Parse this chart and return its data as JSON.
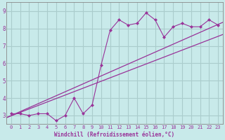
{
  "title": "",
  "xlabel": "Windchill (Refroidissement éolien,°C)",
  "ylabel": "",
  "background_color": "#c8eaea",
  "grid_color": "#aacccc",
  "line_color": "#993399",
  "spine_color": "#888888",
  "xlim": [
    -0.5,
    23.5
  ],
  "ylim": [
    2.5,
    9.5
  ],
  "xticks": [
    0,
    1,
    2,
    3,
    4,
    5,
    6,
    7,
    8,
    9,
    10,
    11,
    12,
    13,
    14,
    15,
    16,
    17,
    18,
    19,
    20,
    21,
    22,
    23
  ],
  "yticks": [
    3,
    4,
    5,
    6,
    7,
    8,
    9
  ],
  "scatter_x": [
    0,
    1,
    2,
    3,
    4,
    5,
    6,
    7,
    8,
    9,
    10,
    11,
    12,
    13,
    14,
    15,
    16,
    17,
    18,
    19,
    20,
    21,
    22,
    23
  ],
  "scatter_y": [
    3.1,
    3.1,
    3.0,
    3.1,
    3.1,
    2.7,
    3.0,
    4.0,
    3.1,
    3.6,
    5.9,
    7.9,
    8.5,
    8.2,
    8.3,
    8.9,
    8.5,
    7.5,
    8.1,
    8.3,
    8.1,
    8.1,
    8.5,
    8.2
  ],
  "line1_x": [
    -0.5,
    23.5
  ],
  "line1_y": [
    2.88,
    8.35
  ],
  "line2_x": [
    -0.5,
    23.5
  ],
  "line2_y": [
    2.88,
    7.65
  ],
  "marker": "D",
  "marker_size": 2.5,
  "tick_fontsize": 5.0,
  "xlabel_fontsize": 5.5
}
